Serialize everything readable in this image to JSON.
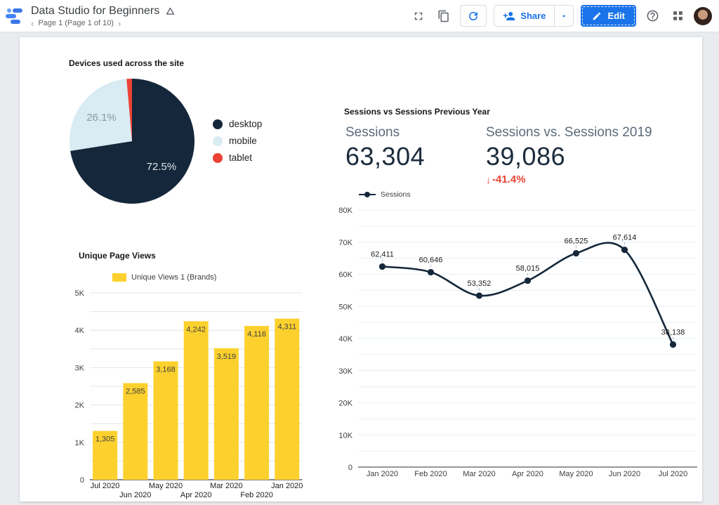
{
  "header": {
    "title": "Data Studio for Beginners",
    "page_nav": "Page 1 (Page 1 of 10)",
    "prev_page": "‹",
    "next_page": "›",
    "share_label": "Share",
    "edit_label": "Edit"
  },
  "pie_section": {
    "title": "Devices used across the site"
  },
  "bar_section": {
    "title": "Unique Page Views"
  },
  "score_section": {
    "title": "Sessions vs Sessions Previous Year",
    "metrics": [
      {
        "label": "Sessions",
        "value": "63,304"
      },
      {
        "label": "Sessions vs. Sessions 2019",
        "value": "39,086",
        "delta": "-41.4%",
        "delta_arrow": "↓"
      }
    ]
  },
  "colors": {
    "accent_blue": "#1a73e8",
    "navy": "#15273a",
    "light_blue_slice": "#d9ebf3",
    "red": "#ea4335",
    "yellow": "#fcd12e",
    "page_bg": "#e9ebee"
  },
  "chart_data": [
    {
      "type": "pie",
      "title": "Devices used across the site",
      "legend_position": "right",
      "start_angle_deg": -90,
      "direction": "clockwise",
      "slices": [
        {
          "label": "desktop",
          "value_pct": 72.5,
          "color": "#15273a",
          "pct_label": "72.5%",
          "pct_label_color": "#dce4ea"
        },
        {
          "label": "mobile",
          "value_pct": 26.1,
          "color": "#d9ebf3",
          "pct_label": "26.1%",
          "pct_label_color": "#8d99a1"
        },
        {
          "label": "tablet",
          "value_pct": 1.4,
          "color": "#ea4335",
          "pct_label": null,
          "pct_label_color": null
        }
      ]
    },
    {
      "type": "bar",
      "title": "Unique Page Views",
      "series_name": "Unique Views 1 (Brands)",
      "categories": [
        "Jul 2020",
        "Jun 2020",
        "May 2020",
        "Apr 2020",
        "Mar 2020",
        "Feb 2020",
        "Jan 2020"
      ],
      "values": [
        1305,
        2585,
        3168,
        4242,
        3519,
        4116,
        4311
      ],
      "bar_color": "#fcd12e",
      "ylim": [
        0,
        5000
      ],
      "ytick_step": 1000,
      "ytick_labels": [
        "0",
        "1K",
        "2K",
        "3K",
        "4K",
        "5K"
      ],
      "grid_minor_step": 500,
      "grid": true,
      "xlabel": "",
      "ylabel": ""
    },
    {
      "type": "line",
      "title": "Sessions",
      "series_name": "Sessions",
      "x": [
        "Jan 2020",
        "Feb 2020",
        "Mar 2020",
        "Apr 2020",
        "May 2020",
        "Jun 2020",
        "Jul 2020"
      ],
      "values": [
        62411,
        60646,
        53352,
        58015,
        66525,
        67614,
        38138
      ],
      "point_labels": [
        "62,411",
        "60,646",
        "53,352",
        "58,015",
        "66,525",
        "67,614",
        "38,138"
      ],
      "line_color": "#15273a",
      "smooth": true,
      "ylim": [
        0,
        80000
      ],
      "ytick_step": 10000,
      "ytick_labels": [
        "0",
        "10K",
        "20K",
        "30K",
        "40K",
        "50K",
        "60K",
        "70K",
        "80K"
      ],
      "grid_minor_step": 5000,
      "grid": true,
      "legend_position": "top-left",
      "xlabel": "",
      "ylabel": ""
    }
  ]
}
